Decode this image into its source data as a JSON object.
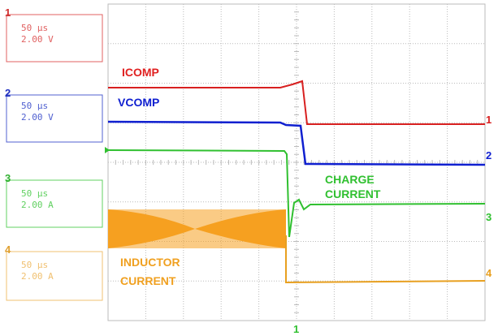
{
  "channels": [
    {
      "number": "1",
      "timebase": "50 µs",
      "scale": "2.00 V"
    },
    {
      "number": "2",
      "timebase": "50 µs",
      "scale": "2.00 V"
    },
    {
      "number": "3",
      "timebase": "50 µs",
      "scale": "2.00 A"
    },
    {
      "number": "4",
      "timebase": "50 µs",
      "scale": "2.00 A"
    }
  ],
  "trace_labels": {
    "icomp": [
      "ICOMP"
    ],
    "vcomp": [
      "VCOMP"
    ],
    "charge_current": [
      "CHARGE",
      "CURRENT"
    ],
    "inductor_current": [
      "INDUCTOR",
      "CURRENT"
    ]
  },
  "trace_markers": [
    "1",
    "2",
    "3",
    "4"
  ],
  "trigger_marker": "1"
}
